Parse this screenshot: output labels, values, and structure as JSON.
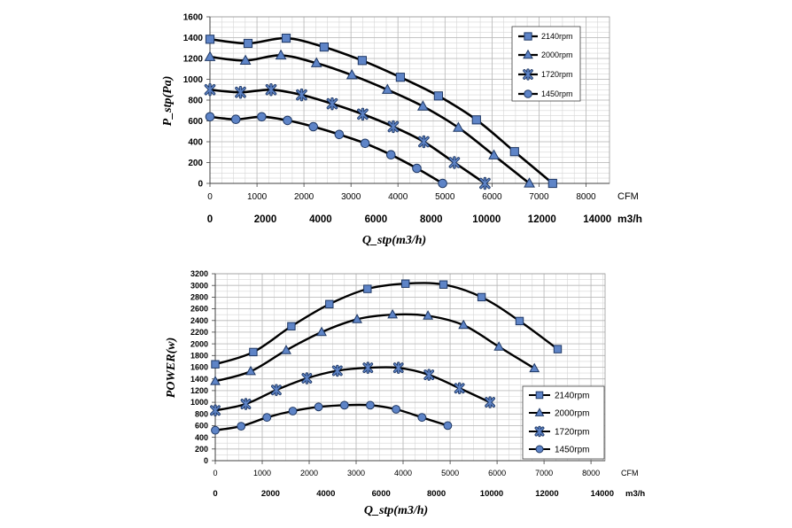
{
  "chart_data": [
    {
      "type": "line",
      "ylabel": "P_stp(Pa)",
      "xlabel": "Q_stp(m3/h)",
      "x_unit": "CFM",
      "x2_unit": "m3/h",
      "xlim": [
        0,
        8500
      ],
      "ylim": [
        0,
        1600
      ],
      "x_ticks": [
        0,
        1000,
        2000,
        3000,
        4000,
        5000,
        6000,
        7000,
        8000
      ],
      "x2_ticks": [
        0,
        2000,
        4000,
        6000,
        8000,
        10000,
        12000,
        14000
      ],
      "y_ticks": [
        0,
        200,
        400,
        600,
        800,
        1000,
        1200,
        1400,
        1600
      ],
      "grid": true,
      "legend": "top-right",
      "series": [
        {
          "name": "2140rpm",
          "marker": "square",
          "x": [
            0,
            810,
            1620,
            2430,
            3240,
            4050,
            4860,
            5670,
            6480,
            7290
          ],
          "y": [
            1385,
            1345,
            1395,
            1310,
            1180,
            1020,
            840,
            610,
            305,
            0
          ]
        },
        {
          "name": "2000rpm",
          "marker": "triangle",
          "x": [
            0,
            755,
            1510,
            2265,
            3020,
            3775,
            4530,
            5285,
            6040,
            6795
          ],
          "y": [
            1215,
            1180,
            1230,
            1155,
            1040,
            900,
            740,
            535,
            270,
            0
          ]
        },
        {
          "name": "1720rpm",
          "marker": "star",
          "x": [
            0,
            650,
            1300,
            1950,
            2600,
            3250,
            3900,
            4550,
            5200,
            5850
          ],
          "y": [
            900,
            875,
            900,
            850,
            765,
            665,
            545,
            400,
            200,
            0
          ]
        },
        {
          "name": "1450rpm",
          "marker": "circle",
          "x": [
            0,
            550,
            1100,
            1650,
            2200,
            2750,
            3300,
            3850,
            4400,
            4950
          ],
          "y": [
            640,
            615,
            640,
            605,
            545,
            470,
            385,
            275,
            145,
            0
          ]
        }
      ]
    },
    {
      "type": "line",
      "ylabel": "POWER(w)",
      "xlabel": "Q_stp(m3/h)",
      "x_unit": "CFM",
      "x2_unit": "m3/h",
      "xlim": [
        0,
        8300
      ],
      "ylim": [
        0,
        3200
      ],
      "x_ticks": [
        0,
        1000,
        2000,
        3000,
        4000,
        5000,
        6000,
        7000,
        8000
      ],
      "x2_ticks": [
        0,
        2000,
        4000,
        6000,
        8000,
        10000,
        12000,
        14000
      ],
      "y_ticks": [
        0,
        200,
        400,
        600,
        800,
        1000,
        1200,
        1400,
        1600,
        1800,
        2000,
        2200,
        2400,
        2600,
        2800,
        3000,
        3200
      ],
      "grid": true,
      "legend": "bottom-right",
      "series": [
        {
          "name": "2140rpm",
          "marker": "square",
          "x": [
            0,
            810,
            1620,
            2430,
            3240,
            4050,
            4860,
            5670,
            6480,
            7290
          ],
          "y": [
            1650,
            1860,
            2300,
            2680,
            2940,
            3030,
            3015,
            2800,
            2390,
            1910
          ]
        },
        {
          "name": "2000rpm",
          "marker": "triangle",
          "x": [
            0,
            755,
            1510,
            2265,
            3020,
            3775,
            4530,
            5285,
            6040,
            6795
          ],
          "y": [
            1360,
            1530,
            1890,
            2200,
            2420,
            2500,
            2480,
            2320,
            1950,
            1580
          ]
        },
        {
          "name": "1720rpm",
          "marker": "star",
          "x": [
            0,
            650,
            1300,
            1950,
            2600,
            3250,
            3900,
            4550,
            5200,
            5850
          ],
          "y": [
            860,
            970,
            1210,
            1410,
            1540,
            1590,
            1590,
            1470,
            1240,
            1000
          ]
        },
        {
          "name": "1450rpm",
          "marker": "circle",
          "x": [
            0,
            550,
            1100,
            1650,
            2200,
            2750,
            3300,
            3850,
            4400,
            4950
          ],
          "y": [
            520,
            590,
            740,
            850,
            920,
            950,
            950,
            880,
            740,
            600
          ]
        }
      ]
    }
  ],
  "colors": {
    "line": "#000000",
    "marker_fill": "#5E84C7",
    "marker_stroke": "#1F3864",
    "grid_minor": "#D6D6D6",
    "grid_major": "#B8B8B8",
    "axis": "#404040"
  }
}
